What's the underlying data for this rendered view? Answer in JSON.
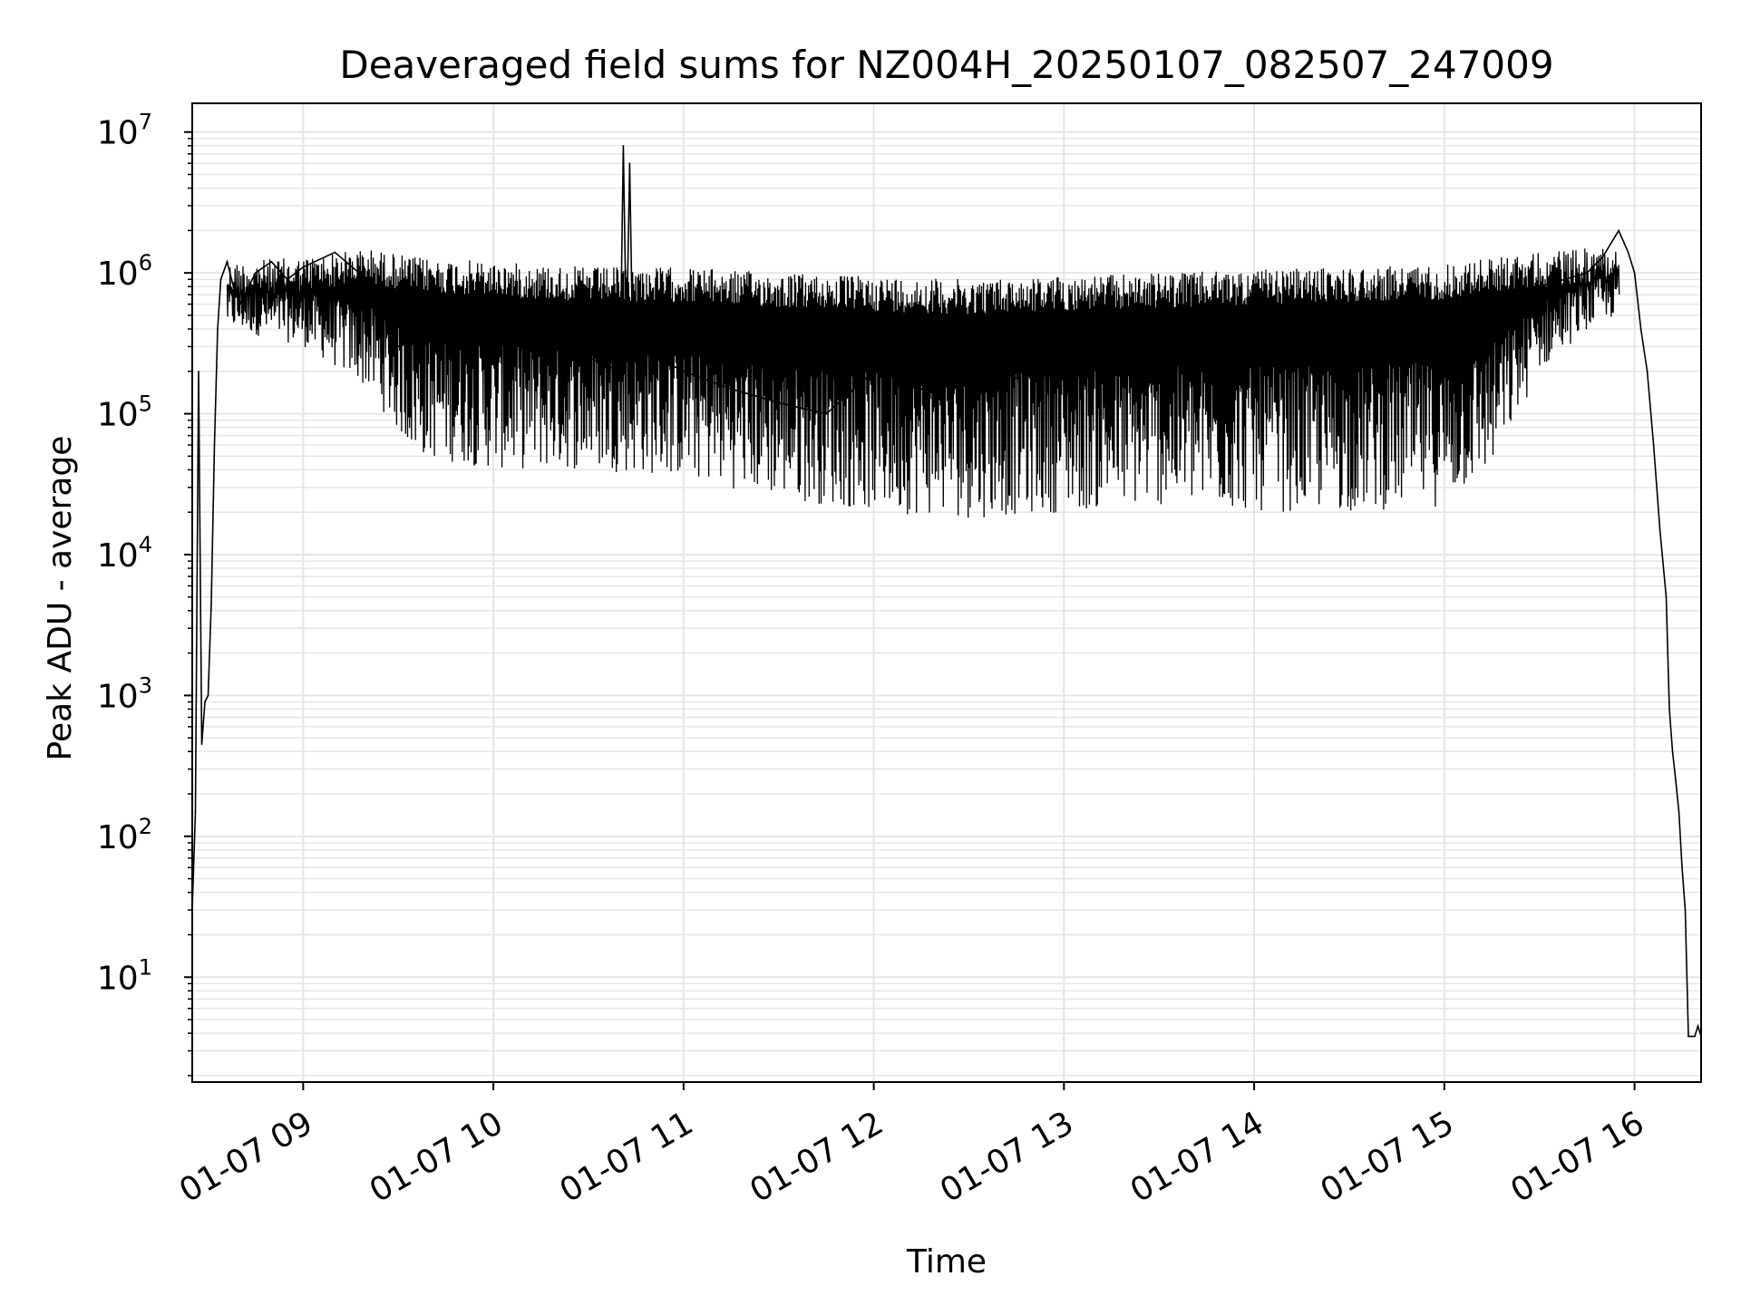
{
  "chart_data": {
    "type": "line",
    "title": "Deaveraged field sums for NZ004H_20250107_082507_247009",
    "xlabel": "Time",
    "ylabel": "Peak ADU - average",
    "yscale": "log",
    "grid": true,
    "line_color": "#000000",
    "grid_color": "#e6e6e6",
    "xlim": [
      "01-07 08:25",
      "01-07 16:21"
    ],
    "ylim": [
      1.8,
      16000000
    ],
    "x_ticks": [
      {
        "label": "01-07 09",
        "value": "01-07 09:00"
      },
      {
        "label": "01-07 10",
        "value": "01-07 10:00"
      },
      {
        "label": "01-07 11",
        "value": "01-07 11:00"
      },
      {
        "label": "01-07 12",
        "value": "01-07 12:00"
      },
      {
        "label": "01-07 13",
        "value": "01-07 13:00"
      },
      {
        "label": "01-07 14",
        "value": "01-07 14:00"
      },
      {
        "label": "01-07 15",
        "value": "01-07 15:00"
      },
      {
        "label": "01-07 16",
        "value": "01-07 16:00"
      }
    ],
    "y_ticks": [
      {
        "base": "10",
        "exp": "1",
        "value": 10
      },
      {
        "base": "10",
        "exp": "2",
        "value": 100
      },
      {
        "base": "10",
        "exp": "3",
        "value": 1000
      },
      {
        "base": "10",
        "exp": "4",
        "value": 10000
      },
      {
        "base": "10",
        "exp": "5",
        "value": 100000
      },
      {
        "base": "10",
        "exp": "6",
        "value": 1000000
      },
      {
        "base": "10",
        "exp": "7",
        "value": 10000000
      }
    ],
    "series": [
      {
        "x": [
          "01-07 08:25",
          "01-07 08:26",
          "01-07 08:27",
          "01-07 08:28",
          "01-07 08:29",
          "01-07 08:30",
          "01-07 08:31",
          "01-07 08:32",
          "01-07 08:33",
          "01-07 08:34",
          "01-07 08:36",
          "01-07 08:38",
          "01-07 08:40",
          "01-07 08:45",
          "01-07 08:50",
          "01-07 08:55",
          "01-07 09:00",
          "01-07 09:10",
          "01-07 09:20",
          "01-07 09:30",
          "01-07 09:45",
          "01-07 10:00",
          "01-07 10:15",
          "01-07 10:30",
          "01-07 10:40",
          "01-07 10:41",
          "01-07 10:42",
          "01-07 10:43",
          "01-07 10:44",
          "01-07 10:45",
          "01-07 11:00",
          "01-07 11:15",
          "01-07 11:30",
          "01-07 11:45",
          "01-07 12:00",
          "01-07 12:15",
          "01-07 12:30",
          "01-07 12:45",
          "01-07 13:00",
          "01-07 13:15",
          "01-07 13:30",
          "01-07 13:45",
          "01-07 14:00",
          "01-07 14:15",
          "01-07 14:30",
          "01-07 14:45",
          "01-07 15:00",
          "01-07 15:15",
          "01-07 15:30",
          "01-07 15:45",
          "01-07 15:50",
          "01-07 15:55",
          "01-07 15:58",
          "01-07 16:00",
          "01-07 16:02",
          "01-07 16:04",
          "01-07 16:06",
          "01-07 16:08",
          "01-07 16:10",
          "01-07 16:11",
          "01-07 16:12",
          "01-07 16:13",
          "01-07 16:14",
          "01-07 16:15",
          "01-07 16:16",
          "01-07 16:17",
          "01-07 16:18",
          "01-07 16:19",
          "01-07 16:20",
          "01-07 16:21"
        ],
        "y": [
          30,
          150,
          200000,
          450,
          900,
          1000,
          4500,
          60000,
          400000,
          900000,
          1200000,
          800000,
          600000,
          1000000,
          1200000,
          900000,
          1100000,
          1400000,
          900000,
          300000,
          400000,
          350000,
          300000,
          250000,
          200000,
          8000000,
          300000,
          6000000,
          250000,
          300000,
          200000,
          150000,
          120000,
          100000,
          200000,
          150000,
          200000,
          180000,
          400000,
          500000,
          450000,
          500000,
          500000,
          550000,
          500000,
          520000,
          550000,
          600000,
          800000,
          1000000,
          1300000,
          2000000,
          1400000,
          1000000,
          400000,
          200000,
          60000,
          15000,
          5000,
          800,
          400,
          250,
          150,
          60,
          30,
          3.8,
          3.8,
          3.8,
          4.5,
          3.8
        ]
      }
    ],
    "band": {
      "x": [
        "01-07 08:36",
        "01-07 09:00",
        "01-07 09:20",
        "01-07 09:35",
        "01-07 10:00",
        "01-07 10:30",
        "01-07 11:00",
        "01-07 11:30",
        "01-07 12:00",
        "01-07 12:30",
        "01-07 13:00",
        "01-07 13:30",
        "01-07 14:00",
        "01-07 14:30",
        "01-07 15:00",
        "01-07 15:15",
        "01-07 15:30",
        "01-07 15:45",
        "01-07 15:55"
      ],
      "upper": [
        1200000,
        1300000,
        1500000,
        1300000,
        1200000,
        1100000,
        1100000,
        1000000,
        950000,
        900000,
        950000,
        1000000,
        1050000,
        1100000,
        1150000,
        1300000,
        1400000,
        1500000,
        1600000
      ],
      "lower": [
        400000,
        300000,
        150000,
        50000,
        40000,
        40000,
        35000,
        25000,
        20000,
        18000,
        20000,
        22000,
        20000,
        20000,
        22000,
        40000,
        200000,
        400000,
        500000
      ]
    }
  }
}
